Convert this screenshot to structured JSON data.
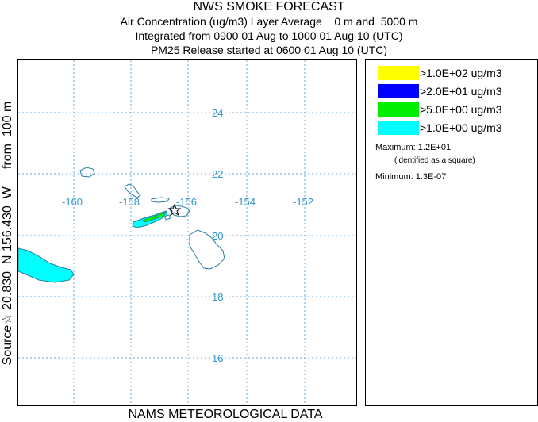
{
  "header": {
    "title": "NWS SMOKE FORECAST",
    "line2": "Air Concentration (ug/m3) Layer Average    0 m and  5000 m",
    "line3": "Integrated from 0900 01 Aug to 1000 01 Aug 10 (UTC)",
    "line4": "PM25 Release started at 0600 01 Aug 10 (UTC)"
  },
  "side_label": "Source☆ 20.830  N 156.430  W     from  100 m",
  "bottom_label": "NAMS METEOROLOGICAL DATA",
  "map": {
    "longitude_labels": [
      "-160",
      "-158",
      "-156",
      "-154",
      "-152"
    ],
    "latitude_labels": [
      "24",
      "22",
      "20",
      "18",
      "16"
    ],
    "grid_color": "#66aadd",
    "coast_color": "#2a7fa0"
  },
  "legend": {
    "items": [
      {
        "label": ">1.0E+02 ug/m3",
        "color": "#ffff00"
      },
      {
        "label": ">2.0E+01 ug/m3",
        "color": "#0000ff"
      },
      {
        "label": ">5.0E+00 ug/m3",
        "color": "#00ee00"
      },
      {
        "label": ">1.0E+00 ug/m3",
        "color": "#00ffff"
      }
    ],
    "maximum": "Maximum: 1.2E+01",
    "maximum_note": "(identified as a square)",
    "minimum": "Minimum: 1.3E-07"
  }
}
